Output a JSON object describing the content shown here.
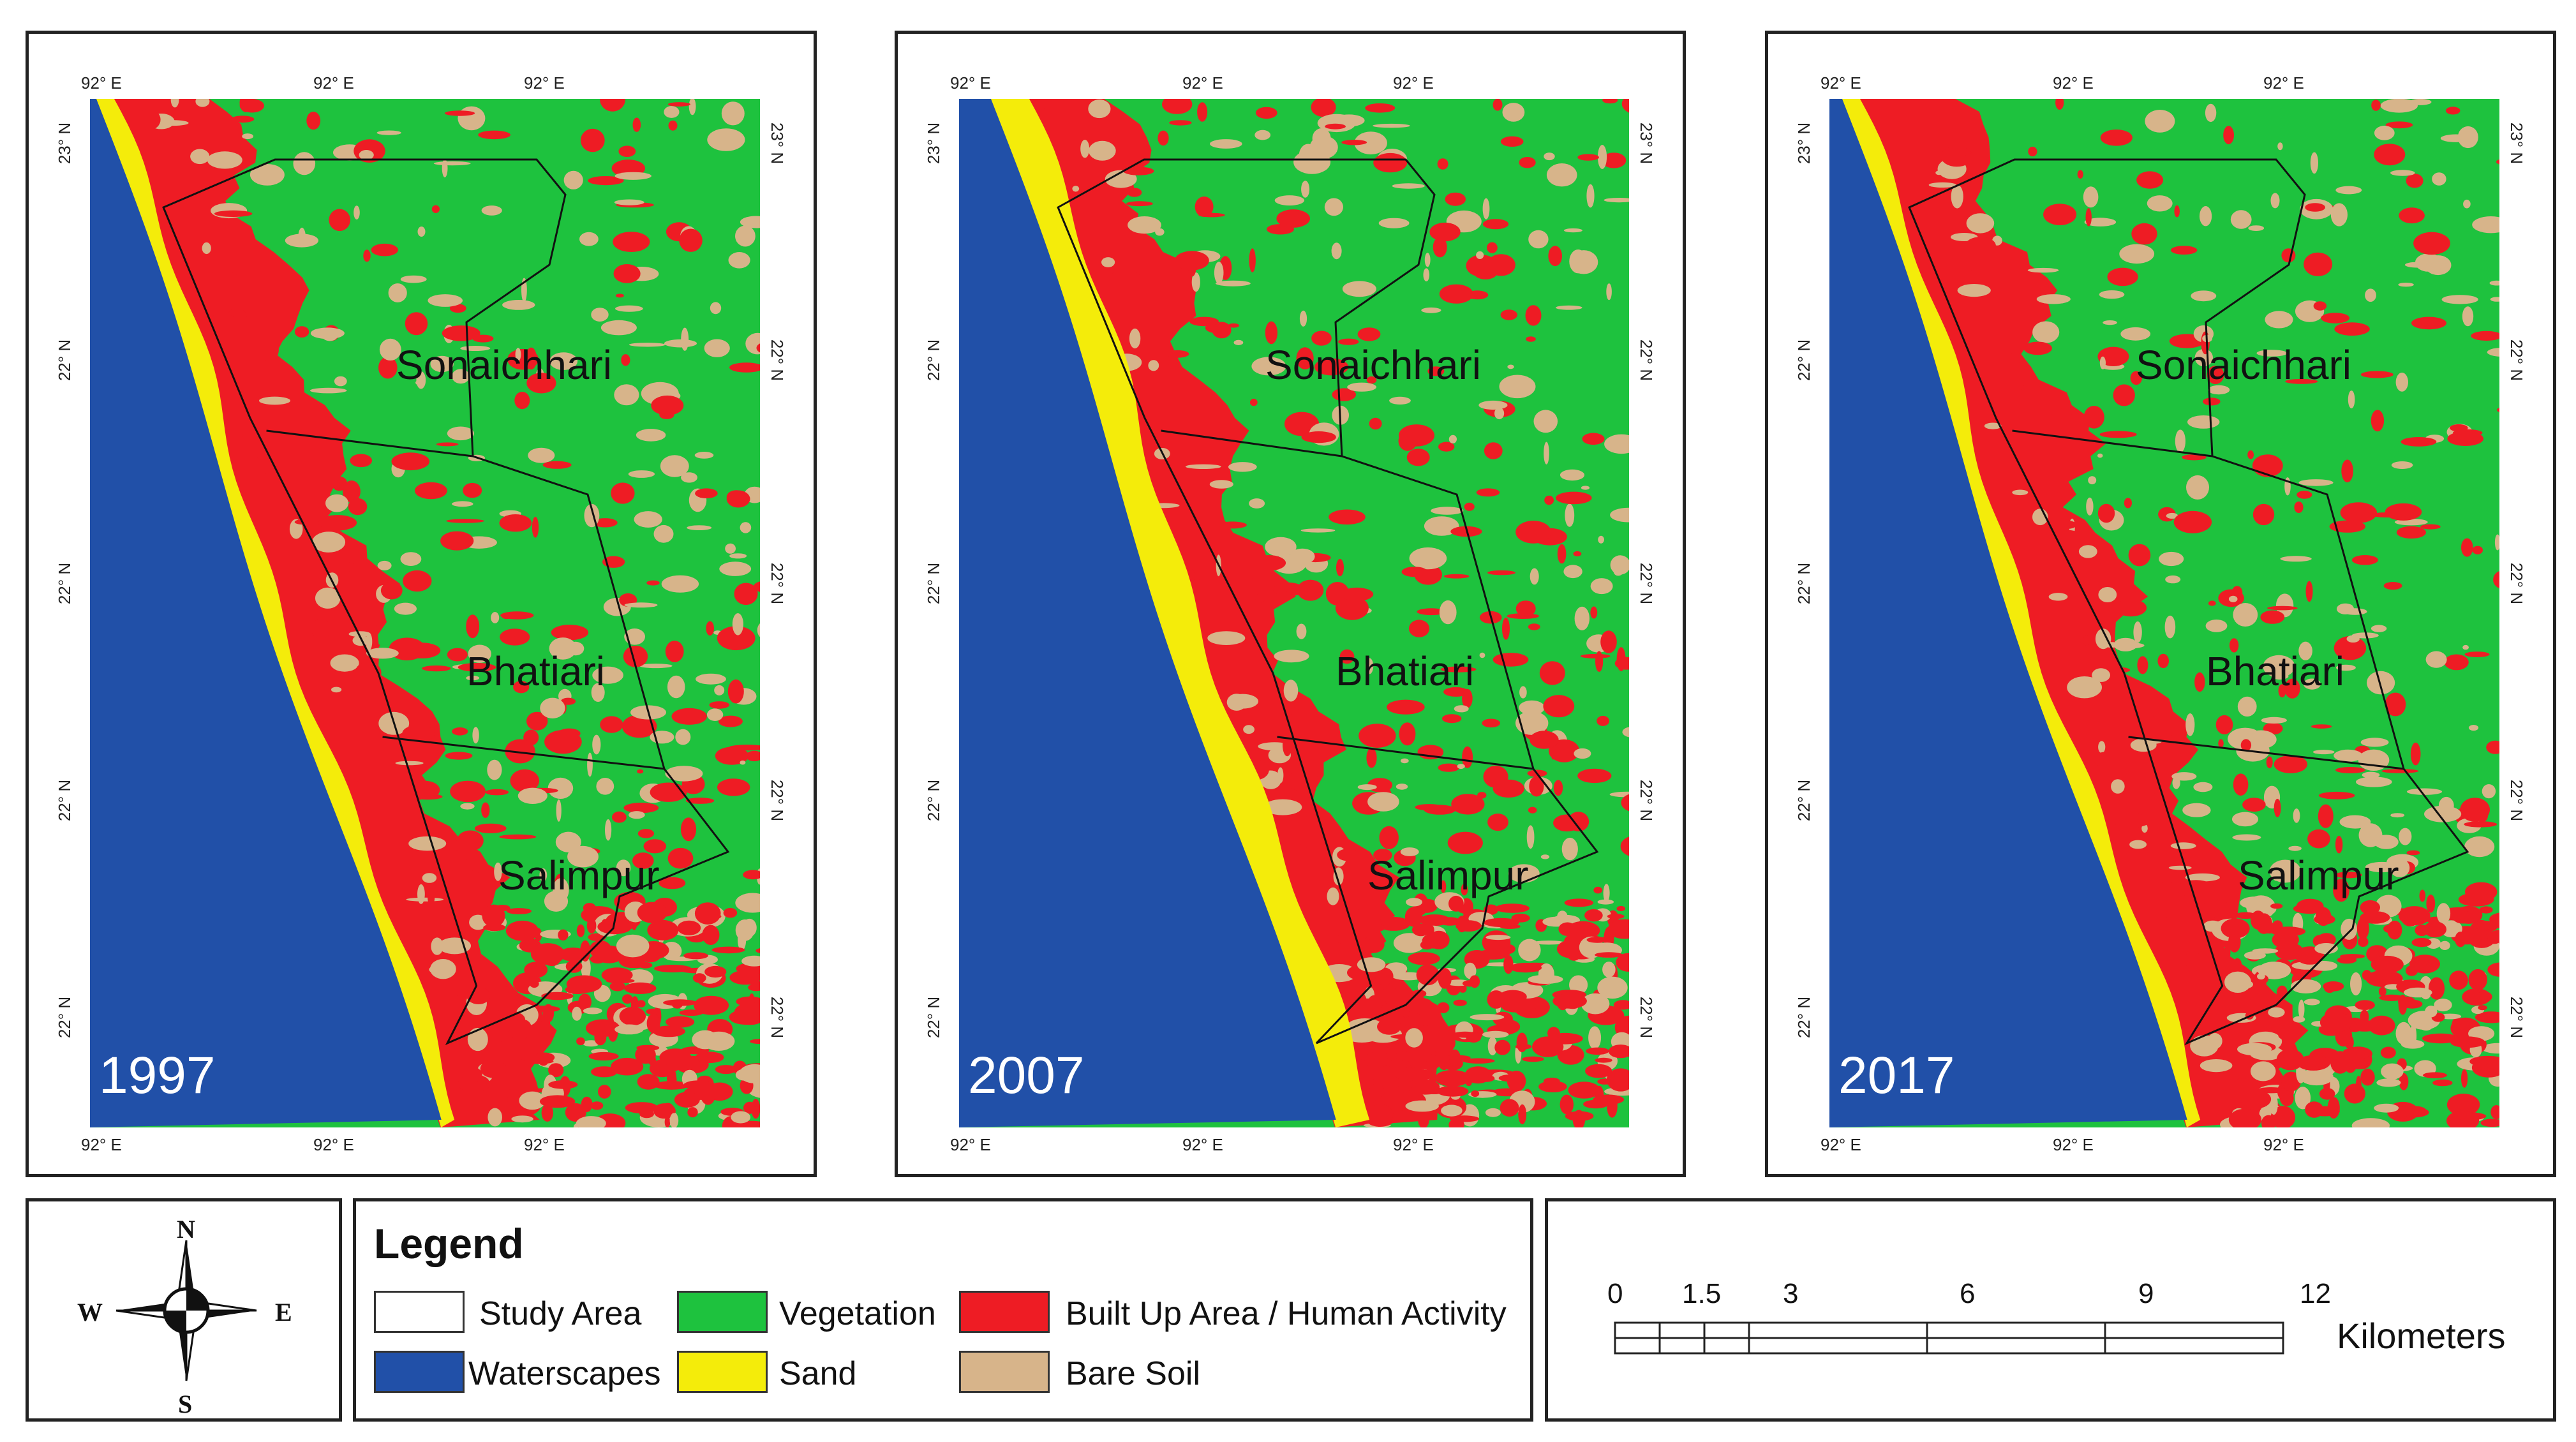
{
  "panels": [
    {
      "year": "1997",
      "labels": {
        "north": "Sonaichhari",
        "middle": "Bhatiari",
        "south": "Salimpur"
      }
    },
    {
      "year": "2007",
      "labels": {
        "north": "Sonaichhari",
        "middle": "Bhatiari",
        "south": "Salimpur"
      }
    },
    {
      "year": "2017",
      "labels": {
        "north": "Sonaichhari",
        "middle": "Bhatiari",
        "south": "Salimpur"
      }
    }
  ],
  "grid": {
    "lon_ticks": [
      "92° E",
      "92° E",
      "92° E"
    ],
    "lat_ticks": [
      "23° N",
      "22° N",
      "22° N",
      "22° N",
      "22° N"
    ]
  },
  "compass": {
    "n": "N",
    "s": "S",
    "e": "E",
    "w": "W"
  },
  "legend": {
    "title": "Legend",
    "items": [
      {
        "label": "Study Area",
        "color": "#ffffff"
      },
      {
        "label": "Waterscapes",
        "color": "#2150a8"
      },
      {
        "label": "Vegetation",
        "color": "#1ec23e"
      },
      {
        "label": "Sand",
        "color": "#f4ec0a"
      },
      {
        "label": "Built Up Area / Human Activity",
        "color": "#ee1c24"
      },
      {
        "label": "Bare Soil",
        "color": "#d7b48a"
      }
    ]
  },
  "scale_bar": {
    "ticks": [
      "0",
      "1.5",
      "3",
      "6",
      "9",
      "12"
    ],
    "unit": "Kilometers"
  }
}
